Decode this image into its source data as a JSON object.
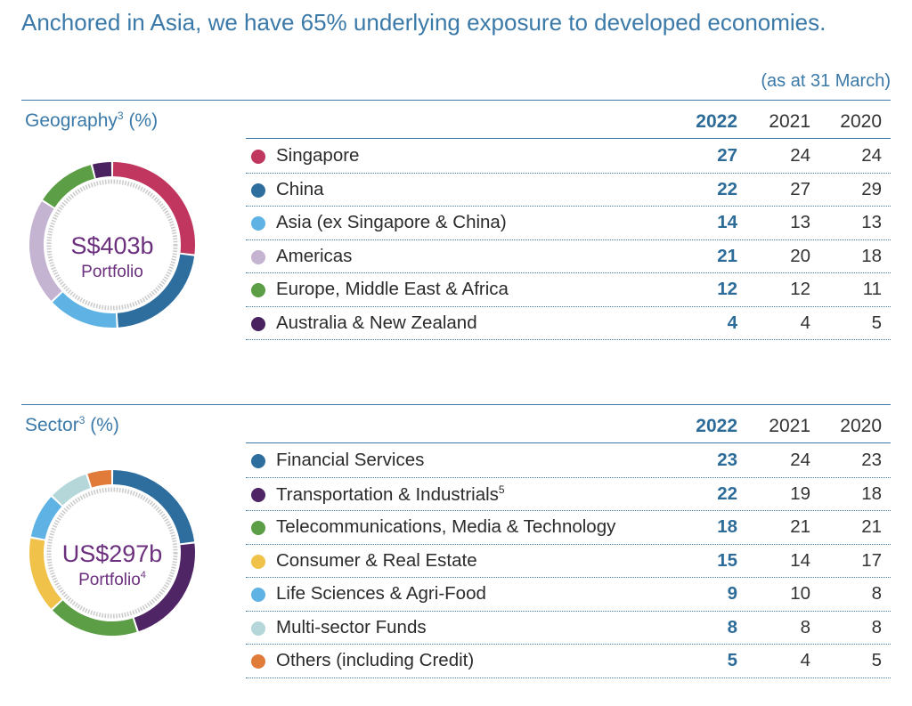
{
  "headline": "Anchored in Asia, we have 65% underlying exposure to developed economies.",
  "as_at": "(as at 31 March)",
  "colors": {
    "title_blue": "#3a79a8",
    "value_blue": "#2d6c99",
    "donut_text": "#6b2f7e"
  },
  "chart_data": [
    {
      "type": "pie",
      "title": "Geography",
      "title_sup": "3",
      "unit": "(%)",
      "center_value": "S$403b",
      "center_label": "Portfolio",
      "center_label_sup": "",
      "years": [
        "2022",
        "2021",
        "2020"
      ],
      "rows": [
        {
          "label": "Singapore",
          "sup": "",
          "color": "#c0365e",
          "values": [
            "27",
            "24",
            "24"
          ]
        },
        {
          "label": "China",
          "sup": "",
          "color": "#2e6e9e",
          "values": [
            "22",
            "27",
            "29"
          ]
        },
        {
          "label": "Asia (ex Singapore & China)",
          "sup": "",
          "color": "#5eb3e4",
          "values": [
            "14",
            "13",
            "13"
          ]
        },
        {
          "label": "Americas",
          "sup": "",
          "color": "#c4b3d1",
          "values": [
            "21",
            "20",
            "18"
          ]
        },
        {
          "label": "Europe, Middle East & Africa",
          "sup": "",
          "color": "#5b9e45",
          "values": [
            "12",
            "12",
            "11"
          ]
        },
        {
          "label": "Australia & New Zealand",
          "sup": "",
          "color": "#4a2260",
          "values": [
            "4",
            "4",
            "5"
          ]
        }
      ]
    },
    {
      "type": "pie",
      "title": "Sector",
      "title_sup": "3",
      "unit": "(%)",
      "center_value": "US$297b",
      "center_label": "Portfolio",
      "center_label_sup": "4",
      "years": [
        "2022",
        "2021",
        "2020"
      ],
      "rows": [
        {
          "label": "Financial Services",
          "sup": "",
          "color": "#2e6e9e",
          "values": [
            "23",
            "24",
            "23"
          ]
        },
        {
          "label": "Transportation & Industrials",
          "sup": "5",
          "color": "#4f2566",
          "values": [
            "22",
            "19",
            "18"
          ]
        },
        {
          "label": "Telecommunications, Media & Technology",
          "sup": "",
          "color": "#5b9e45",
          "values": [
            "18",
            "21",
            "21"
          ]
        },
        {
          "label": "Consumer & Real Estate",
          "sup": "",
          "color": "#f0c24a",
          "values": [
            "15",
            "14",
            "17"
          ]
        },
        {
          "label": "Life Sciences & Agri-Food",
          "sup": "",
          "color": "#5eb3e4",
          "values": [
            "9",
            "10",
            "8"
          ]
        },
        {
          "label": "Multi-sector Funds",
          "sup": "",
          "color": "#b5d7da",
          "values": [
            "8",
            "8",
            "8"
          ]
        },
        {
          "label": "Others (including Credit)",
          "sup": "",
          "color": "#e07b3a",
          "values": [
            "5",
            "4",
            "5"
          ]
        }
      ]
    }
  ]
}
